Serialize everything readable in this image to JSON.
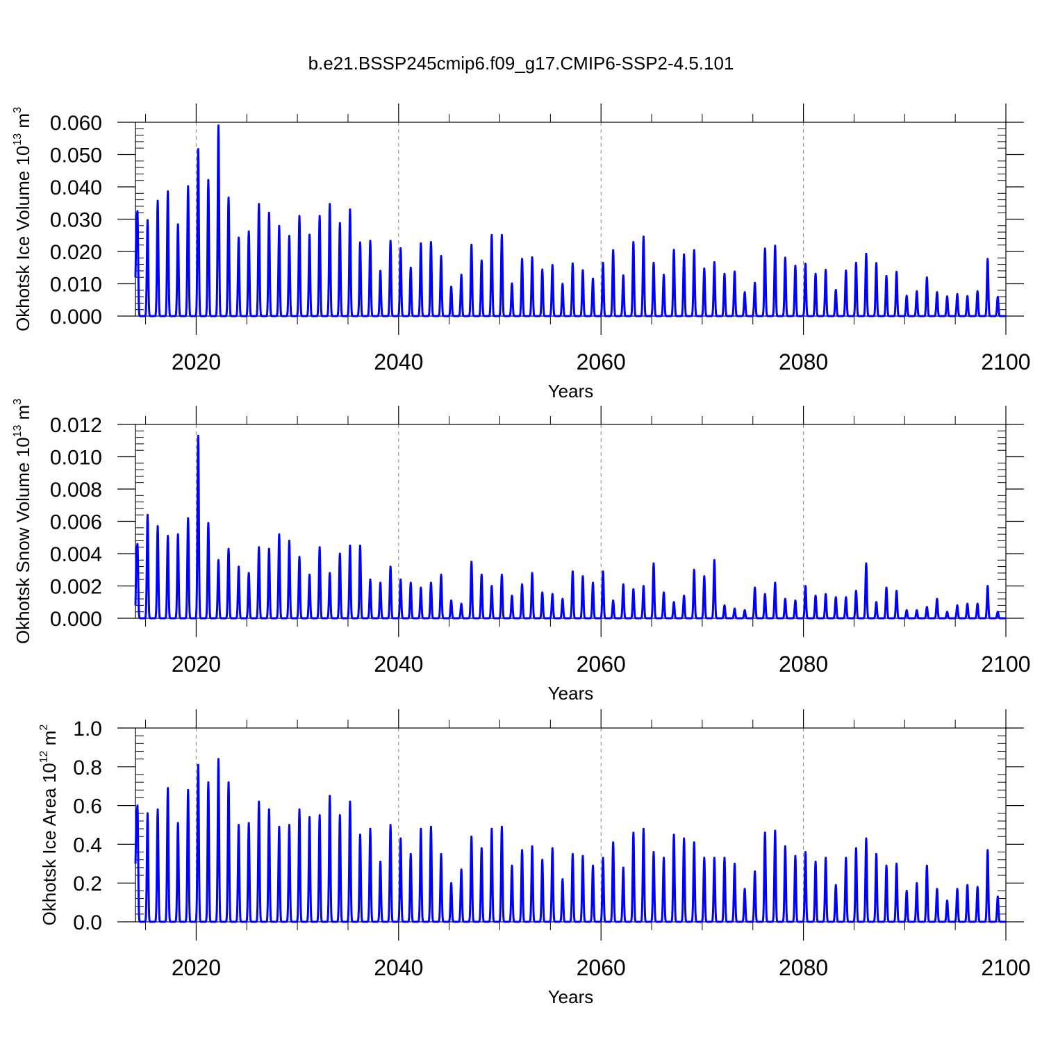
{
  "figure": {
    "title": "b.e21.BSSP245cmip6.f09_g17.CMIP6-SSP2-4.5.101"
  },
  "chart_data": [
    {
      "type": "line",
      "ylabel": "Okhotsk Ice Volume 10",
      "ylabel_exponent": "13",
      "ylabel_unit": "m",
      "ylabel_unit_exponent": "3",
      "xlabel": "Years",
      "xlim": [
        2014,
        2100
      ],
      "ylim": [
        0,
        0.06
      ],
      "x_ticks": [
        2020,
        2040,
        2060,
        2080,
        2100
      ],
      "x_tick_labels": [
        "2020",
        "2040",
        "2060",
        "2080",
        "2100"
      ],
      "y_ticks": [
        0,
        0.01,
        0.02,
        0.03,
        0.04,
        0.05,
        0.06
      ],
      "y_tick_labels": [
        "0.000",
        "0.010",
        "0.020",
        "0.030",
        "0.040",
        "0.050",
        "0.060"
      ],
      "grid": "vertical dashed at major x ticks",
      "series": [
        {
          "color": "#0000ff",
          "start_value": 0.012,
          "x_unit": "year",
          "peak_x": [
            2014.2,
            2015.2,
            2016.2,
            2017.2,
            2018.2,
            2019.2,
            2020.2,
            2021.2,
            2022.2,
            2023.2,
            2024.2,
            2025.2,
            2026.2,
            2027.2,
            2028.2,
            2029.2,
            2030.2,
            2031.2,
            2032.2,
            2033.2,
            2034.2,
            2035.2,
            2036.2,
            2037.2,
            2038.2,
            2039.2,
            2040.2,
            2041.2,
            2042.2,
            2043.2,
            2044.2,
            2045.2,
            2046.2,
            2047.2,
            2048.2,
            2049.2,
            2050.2,
            2051.2,
            2052.2,
            2053.2,
            2054.2,
            2055.2,
            2056.2,
            2057.2,
            2058.2,
            2059.2,
            2060.2,
            2061.2,
            2062.2,
            2063.2,
            2064.2,
            2065.2,
            2066.2,
            2067.2,
            2068.2,
            2069.2,
            2070.2,
            2071.2,
            2072.2,
            2073.2,
            2074.2,
            2075.2,
            2076.2,
            2077.2,
            2078.2,
            2079.2,
            2080.2,
            2081.2,
            2082.2,
            2083.2,
            2084.2,
            2085.2,
            2086.2,
            2087.2,
            2088.2,
            2089.2,
            2090.2,
            2091.2,
            2092.2,
            2093.2,
            2094.2,
            2095.2,
            2096.2,
            2097.2,
            2098.2,
            2099.2
          ],
          "peak_values": [
            0.0325,
            0.0297,
            0.0357,
            0.0386,
            0.0284,
            0.0402,
            0.0517,
            0.0421,
            0.059,
            0.0367,
            0.0243,
            0.0262,
            0.0347,
            0.032,
            0.0279,
            0.0248,
            0.031,
            0.0252,
            0.031,
            0.0347,
            0.0288,
            0.033,
            0.0228,
            0.0233,
            0.014,
            0.0233,
            0.021,
            0.015,
            0.0225,
            0.0229,
            0.0186,
            0.0091,
            0.0128,
            0.0221,
            0.0172,
            0.0251,
            0.0251,
            0.0101,
            0.0177,
            0.0182,
            0.0144,
            0.0158,
            0.01,
            0.0163,
            0.0142,
            0.0116,
            0.0165,
            0.0204,
            0.0126,
            0.0229,
            0.0246,
            0.0165,
            0.0128,
            0.0205,
            0.0191,
            0.0204,
            0.0147,
            0.0167,
            0.0131,
            0.0138,
            0.0074,
            0.0103,
            0.0209,
            0.0218,
            0.0181,
            0.0156,
            0.0162,
            0.0131,
            0.0143,
            0.0081,
            0.0141,
            0.0165,
            0.0193,
            0.0164,
            0.0124,
            0.0137,
            0.0063,
            0.0077,
            0.012,
            0.0074,
            0.0061,
            0.0068,
            0.0062,
            0.0077,
            0.0177,
            0.0059
          ]
        }
      ]
    },
    {
      "type": "line",
      "ylabel": "Okhotsk Snow Volume 10",
      "ylabel_exponent": "13",
      "ylabel_unit": "m",
      "ylabel_unit_exponent": "3",
      "xlabel": "Years",
      "xlim": [
        2014,
        2100
      ],
      "ylim": [
        0,
        0.012
      ],
      "x_ticks": [
        2020,
        2040,
        2060,
        2080,
        2100
      ],
      "x_tick_labels": [
        "2020",
        "2040",
        "2060",
        "2080",
        "2100"
      ],
      "y_ticks": [
        0,
        0.002,
        0.004,
        0.006,
        0.008,
        0.01,
        0.012
      ],
      "y_tick_labels": [
        "0.000",
        "0.002",
        "0.004",
        "0.006",
        "0.008",
        "0.010",
        "0.012"
      ],
      "grid": "vertical dashed at major x ticks",
      "series": [
        {
          "color": "#0000ff",
          "start_value": 0.0008,
          "x_unit": "year",
          "peak_x": [
            2014.2,
            2015.2,
            2016.2,
            2017.2,
            2018.2,
            2019.2,
            2020.2,
            2021.2,
            2022.2,
            2023.2,
            2024.2,
            2025.2,
            2026.2,
            2027.2,
            2028.2,
            2029.2,
            2030.2,
            2031.2,
            2032.2,
            2033.2,
            2034.2,
            2035.2,
            2036.2,
            2037.2,
            2038.2,
            2039.2,
            2040.2,
            2041.2,
            2042.2,
            2043.2,
            2044.2,
            2045.2,
            2046.2,
            2047.2,
            2048.2,
            2049.2,
            2050.2,
            2051.2,
            2052.2,
            2053.2,
            2054.2,
            2055.2,
            2056.2,
            2057.2,
            2058.2,
            2059.2,
            2060.2,
            2061.2,
            2062.2,
            2063.2,
            2064.2,
            2065.2,
            2066.2,
            2067.2,
            2068.2,
            2069.2,
            2070.2,
            2071.2,
            2072.2,
            2073.2,
            2074.2,
            2075.2,
            2076.2,
            2077.2,
            2078.2,
            2079.2,
            2080.2,
            2081.2,
            2082.2,
            2083.2,
            2084.2,
            2085.2,
            2086.2,
            2087.2,
            2088.2,
            2089.2,
            2090.2,
            2091.2,
            2092.2,
            2093.2,
            2094.2,
            2095.2,
            2096.2,
            2097.2,
            2098.2,
            2099.2
          ],
          "peak_values": [
            0.0046,
            0.0064,
            0.0057,
            0.0051,
            0.0052,
            0.0062,
            0.0113,
            0.0059,
            0.0036,
            0.0043,
            0.0032,
            0.0028,
            0.0044,
            0.0043,
            0.0052,
            0.0048,
            0.0038,
            0.0027,
            0.0044,
            0.0028,
            0.004,
            0.0045,
            0.0045,
            0.0024,
            0.0022,
            0.0032,
            0.0024,
            0.0022,
            0.0019,
            0.0022,
            0.0027,
            0.0011,
            0.0009,
            0.0035,
            0.0027,
            0.002,
            0.0027,
            0.0014,
            0.0021,
            0.0028,
            0.0016,
            0.0015,
            0.0012,
            0.0029,
            0.0026,
            0.0022,
            0.0029,
            0.0011,
            0.0021,
            0.0018,
            0.002,
            0.0034,
            0.0016,
            0.001,
            0.0014,
            0.003,
            0.0026,
            0.0036,
            0.0008,
            0.0006,
            0.0005,
            0.0019,
            0.0015,
            0.0022,
            0.0012,
            0.0011,
            0.002,
            0.0014,
            0.0015,
            0.0013,
            0.0013,
            0.0017,
            0.0034,
            0.001,
            0.0019,
            0.0017,
            0.0005,
            0.0005,
            0.0007,
            0.0012,
            0.0004,
            0.0008,
            0.0009,
            0.0009,
            0.002,
            0.0004
          ]
        }
      ]
    },
    {
      "type": "line",
      "ylabel": "Okhotsk Ice Area 10",
      "ylabel_exponent": "12",
      "ylabel_unit": "m",
      "ylabel_unit_exponent": "2",
      "xlabel": "Years",
      "xlim": [
        2014,
        2100
      ],
      "ylim": [
        0,
        1.0
      ],
      "x_ticks": [
        2020,
        2040,
        2060,
        2080,
        2100
      ],
      "x_tick_labels": [
        "2020",
        "2040",
        "2060",
        "2080",
        "2100"
      ],
      "y_ticks": [
        0,
        0.2,
        0.4,
        0.6,
        0.8,
        1.0
      ],
      "y_tick_labels": [
        "0.0",
        "0.2",
        "0.4",
        "0.6",
        "0.8",
        "1.0"
      ],
      "grid": "vertical dashed at major x ticks",
      "series": [
        {
          "color": "#0000ff",
          "start_value": 0.3,
          "x_unit": "year",
          "peak_x": [
            2014.2,
            2015.2,
            2016.2,
            2017.2,
            2018.2,
            2019.2,
            2020.2,
            2021.2,
            2022.2,
            2023.2,
            2024.2,
            2025.2,
            2026.2,
            2027.2,
            2028.2,
            2029.2,
            2030.2,
            2031.2,
            2032.2,
            2033.2,
            2034.2,
            2035.2,
            2036.2,
            2037.2,
            2038.2,
            2039.2,
            2040.2,
            2041.2,
            2042.2,
            2043.2,
            2044.2,
            2045.2,
            2046.2,
            2047.2,
            2048.2,
            2049.2,
            2050.2,
            2051.2,
            2052.2,
            2053.2,
            2054.2,
            2055.2,
            2056.2,
            2057.2,
            2058.2,
            2059.2,
            2060.2,
            2061.2,
            2062.2,
            2063.2,
            2064.2,
            2065.2,
            2066.2,
            2067.2,
            2068.2,
            2069.2,
            2070.2,
            2071.2,
            2072.2,
            2073.2,
            2074.2,
            2075.2,
            2076.2,
            2077.2,
            2078.2,
            2079.2,
            2080.2,
            2081.2,
            2082.2,
            2083.2,
            2084.2,
            2085.2,
            2086.2,
            2087.2,
            2088.2,
            2089.2,
            2090.2,
            2091.2,
            2092.2,
            2093.2,
            2094.2,
            2095.2,
            2096.2,
            2097.2,
            2098.2,
            2099.2
          ],
          "peak_values": [
            0.6,
            0.56,
            0.58,
            0.69,
            0.51,
            0.68,
            0.81,
            0.72,
            0.84,
            0.72,
            0.5,
            0.51,
            0.62,
            0.58,
            0.49,
            0.5,
            0.58,
            0.54,
            0.55,
            0.65,
            0.55,
            0.62,
            0.45,
            0.48,
            0.31,
            0.5,
            0.43,
            0.35,
            0.48,
            0.49,
            0.35,
            0.2,
            0.27,
            0.44,
            0.38,
            0.48,
            0.49,
            0.29,
            0.37,
            0.39,
            0.32,
            0.38,
            0.22,
            0.35,
            0.34,
            0.29,
            0.33,
            0.41,
            0.28,
            0.46,
            0.48,
            0.36,
            0.33,
            0.45,
            0.43,
            0.41,
            0.33,
            0.33,
            0.33,
            0.3,
            0.17,
            0.26,
            0.46,
            0.47,
            0.39,
            0.34,
            0.36,
            0.31,
            0.33,
            0.19,
            0.33,
            0.38,
            0.43,
            0.35,
            0.29,
            0.3,
            0.16,
            0.2,
            0.29,
            0.17,
            0.11,
            0.17,
            0.19,
            0.18,
            0.37,
            0.13
          ]
        }
      ]
    }
  ]
}
